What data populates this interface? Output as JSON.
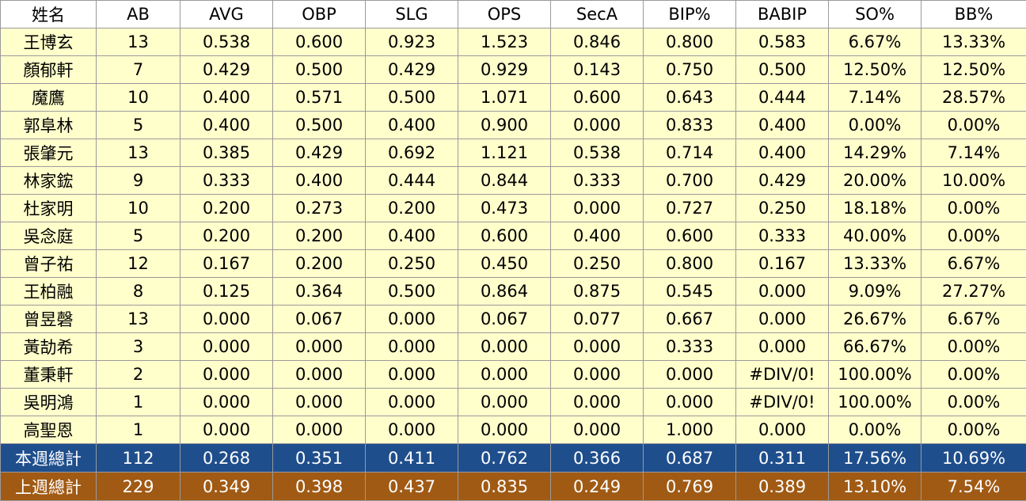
{
  "table": {
    "headers": [
      "姓名",
      "AB",
      "AVG",
      "OBP",
      "SLG",
      "OPS",
      "SecA",
      "BIP%",
      "BABIP",
      "SO%",
      "BB%"
    ],
    "rows": [
      [
        "王博玄",
        "13",
        "0.538",
        "0.600",
        "0.923",
        "1.523",
        "0.846",
        "0.800",
        "0.583",
        "6.67%",
        "13.33%"
      ],
      [
        "顏郁軒",
        "7",
        "0.429",
        "0.500",
        "0.429",
        "0.929",
        "0.143",
        "0.750",
        "0.500",
        "12.50%",
        "12.50%"
      ],
      [
        "魔鷹",
        "10",
        "0.400",
        "0.571",
        "0.500",
        "1.071",
        "0.600",
        "0.643",
        "0.444",
        "7.14%",
        "28.57%"
      ],
      [
        "郭阜林",
        "5",
        "0.400",
        "0.500",
        "0.400",
        "0.900",
        "0.000",
        "0.833",
        "0.400",
        "0.00%",
        "0.00%"
      ],
      [
        "張肇元",
        "13",
        "0.385",
        "0.429",
        "0.692",
        "1.121",
        "0.538",
        "0.714",
        "0.400",
        "14.29%",
        "7.14%"
      ],
      [
        "林家鋐",
        "9",
        "0.333",
        "0.400",
        "0.444",
        "0.844",
        "0.333",
        "0.700",
        "0.429",
        "20.00%",
        "10.00%"
      ],
      [
        "杜家明",
        "10",
        "0.200",
        "0.273",
        "0.200",
        "0.473",
        "0.000",
        "0.727",
        "0.250",
        "18.18%",
        "0.00%"
      ],
      [
        "吳念庭",
        "5",
        "0.200",
        "0.200",
        "0.400",
        "0.600",
        "0.400",
        "0.600",
        "0.333",
        "40.00%",
        "0.00%"
      ],
      [
        "曾子祐",
        "12",
        "0.167",
        "0.200",
        "0.250",
        "0.450",
        "0.250",
        "0.800",
        "0.167",
        "13.33%",
        "6.67%"
      ],
      [
        "王柏融",
        "8",
        "0.125",
        "0.364",
        "0.500",
        "0.864",
        "0.875",
        "0.545",
        "0.000",
        "9.09%",
        "27.27%"
      ],
      [
        "曾昱磬",
        "13",
        "0.000",
        "0.067",
        "0.000",
        "0.067",
        "0.077",
        "0.667",
        "0.000",
        "26.67%",
        "6.67%"
      ],
      [
        "黃劼希",
        "3",
        "0.000",
        "0.000",
        "0.000",
        "0.000",
        "0.000",
        "0.333",
        "0.000",
        "66.67%",
        "0.00%"
      ],
      [
        "董秉軒",
        "2",
        "0.000",
        "0.000",
        "0.000",
        "0.000",
        "0.000",
        "0.000",
        "#DIV/0!",
        "100.00%",
        "0.00%"
      ],
      [
        "吳明鴻",
        "1",
        "0.000",
        "0.000",
        "0.000",
        "0.000",
        "0.000",
        "0.000",
        "#DIV/0!",
        "100.00%",
        "0.00%"
      ],
      [
        "高聖恩",
        "1",
        "0.000",
        "0.000",
        "0.000",
        "0.000",
        "0.000",
        "1.000",
        "0.000",
        "0.00%",
        "0.00%"
      ]
    ],
    "totals": [
      [
        "本週總計",
        "112",
        "0.268",
        "0.351",
        "0.411",
        "0.762",
        "0.366",
        "0.687",
        "0.311",
        "17.56%",
        "10.69%"
      ],
      [
        "上週總計",
        "229",
        "0.349",
        "0.398",
        "0.437",
        "0.835",
        "0.249",
        "0.769",
        "0.389",
        "13.10%",
        "7.54%"
      ]
    ]
  },
  "colors": {
    "header_bg": "#ffffff",
    "row_bg": "#ffffcc",
    "this_week_total_bg": "#1f4e8c",
    "last_week_total_bg": "#a05a14",
    "total_text": "#ffffff",
    "grid": "#9a9a9a"
  }
}
